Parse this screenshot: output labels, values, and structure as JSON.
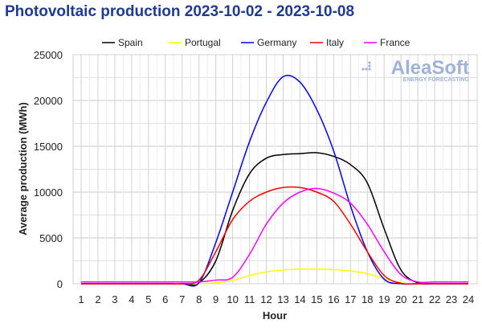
{
  "chart_data": {
    "type": "line",
    "title": "Photovoltaic production 2023-10-02 - 2023-10-08",
    "xlabel": "Hour",
    "ylabel": "Average production (MWh)",
    "ylim": [
      0,
      25000
    ],
    "yticks": [
      "0",
      "5000",
      "10000",
      "15000",
      "20000",
      "25000"
    ],
    "x": [
      1,
      2,
      3,
      4,
      5,
      6,
      7,
      8,
      9,
      10,
      11,
      12,
      13,
      14,
      15,
      16,
      17,
      18,
      19,
      20,
      21,
      22,
      23,
      24
    ],
    "grid": true,
    "legend_position": "top",
    "watermark": "AleaSoft ENERGY FORECASTING",
    "series": [
      {
        "name": "Spain",
        "color": "#000000",
        "values": [
          0,
          0,
          0,
          0,
          0,
          0,
          0,
          100,
          2500,
          8000,
          12000,
          13700,
          14100,
          14200,
          14300,
          13900,
          13000,
          11000,
          6000,
          1500,
          100,
          0,
          0,
          0
        ]
      },
      {
        "name": "Portugal",
        "color": "#ffff00",
        "values": [
          0,
          0,
          0,
          0,
          0,
          0,
          0,
          0,
          100,
          350,
          900,
          1300,
          1500,
          1600,
          1600,
          1550,
          1400,
          1100,
          550,
          100,
          0,
          0,
          0,
          0
        ]
      },
      {
        "name": "Germany",
        "color": "#0000ff",
        "values": [
          0,
          0,
          0,
          0,
          0,
          0,
          0,
          100,
          4500,
          10000,
          15500,
          19800,
          22600,
          22000,
          19000,
          14500,
          8500,
          3500,
          500,
          0,
          0,
          0,
          0,
          0
        ]
      },
      {
        "name": "Italy",
        "color": "#ff0000",
        "values": [
          0,
          0,
          0,
          0,
          0,
          0,
          0,
          400,
          3500,
          7000,
          9000,
          10000,
          10500,
          10500,
          10000,
          9000,
          6500,
          3500,
          900,
          50,
          0,
          0,
          0,
          0
        ]
      },
      {
        "name": "France",
        "color": "#ff00ff",
        "values": [
          200,
          200,
          200,
          200,
          200,
          200,
          200,
          200,
          400,
          700,
          3200,
          6500,
          8800,
          10000,
          10400,
          9900,
          8800,
          6500,
          3500,
          1000,
          200,
          200,
          200,
          200
        ]
      }
    ]
  }
}
